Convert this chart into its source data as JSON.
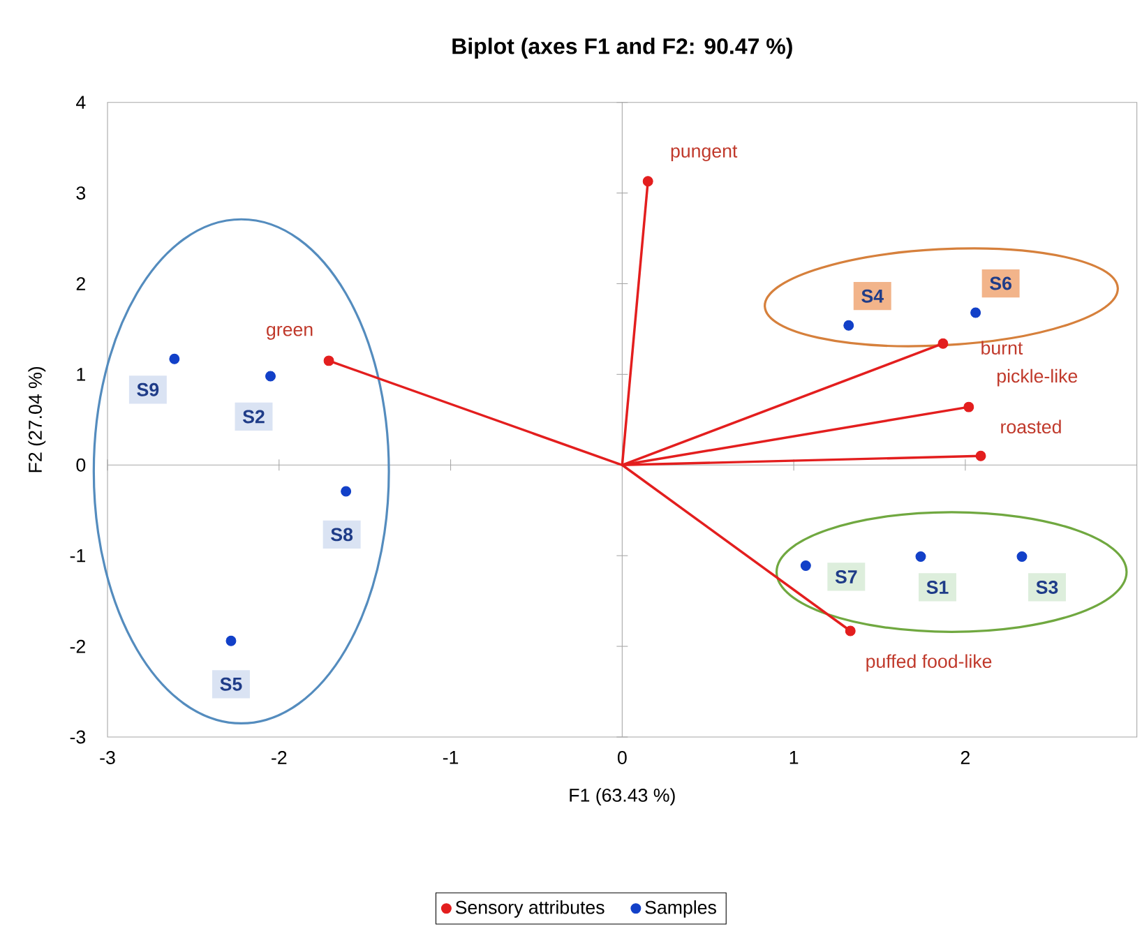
{
  "chart_data": {
    "type": "scatter",
    "title": "Biplot (axes F1 and F2: 90.47 %)",
    "xlabel": "F1 (63.43 %)",
    "ylabel": "F2 (27.04 %)",
    "xlim": [
      -3,
      3
    ],
    "ylim": [
      -3,
      4
    ],
    "xticks": [
      -3,
      -2,
      -1,
      0,
      1,
      2
    ],
    "yticks": [
      -3,
      -2,
      -1,
      0,
      1,
      2,
      3,
      4
    ],
    "legend": "bottom",
    "series": [
      {
        "name": "Sensory attributes",
        "color": "#e31e1e",
        "x": [
          -1.71,
          0.15,
          1.87,
          2.02,
          2.09,
          1.33
        ],
        "values": [
          1.15,
          3.13,
          1.34,
          0.64,
          0.1,
          -1.83
        ],
        "value_labels": [
          "green",
          "pungent",
          "burnt",
          "pickle-like",
          "roasted",
          "puffed food-like"
        ]
      },
      {
        "name": "Samples",
        "color": "#1240c8",
        "x": [
          1.74,
          -2.05,
          2.33,
          1.32,
          -2.28,
          2.06,
          1.07,
          -1.61,
          -2.61
        ],
        "values": [
          -1.01,
          0.98,
          -1.01,
          1.54,
          -1.94,
          1.68,
          -1.11,
          -0.29,
          1.17
        ],
        "value_labels": [
          "S1",
          "S2",
          "S3",
          "S4",
          "S5",
          "S6",
          "S7",
          "S8",
          "S9"
        ]
      },
      {
        "type": "line",
        "color": "#e31e1e",
        "line_style": "solid",
        "x": [
          0,
          -1.71
        ],
        "values": [
          0,
          1.15
        ]
      },
      {
        "type": "line",
        "color": "#e31e1e",
        "line_style": "solid",
        "x": [
          0,
          0.15
        ],
        "values": [
          0,
          3.13
        ]
      },
      {
        "type": "line",
        "color": "#e31e1e",
        "line_style": "solid",
        "x": [
          0,
          1.87
        ],
        "values": [
          0,
          1.34
        ]
      },
      {
        "type": "line",
        "color": "#e31e1e",
        "line_style": "solid",
        "x": [
          0,
          2.02
        ],
        "values": [
          0,
          0.64
        ]
      },
      {
        "type": "line",
        "color": "#e31e1e",
        "line_style": "solid",
        "x": [
          0,
          2.09
        ],
        "values": [
          0,
          0.1
        ]
      },
      {
        "type": "line",
        "color": "#e31e1e",
        "line_style": "solid",
        "x": [
          0,
          1.33
        ],
        "values": [
          0,
          -1.83
        ]
      }
    ]
  }
}
